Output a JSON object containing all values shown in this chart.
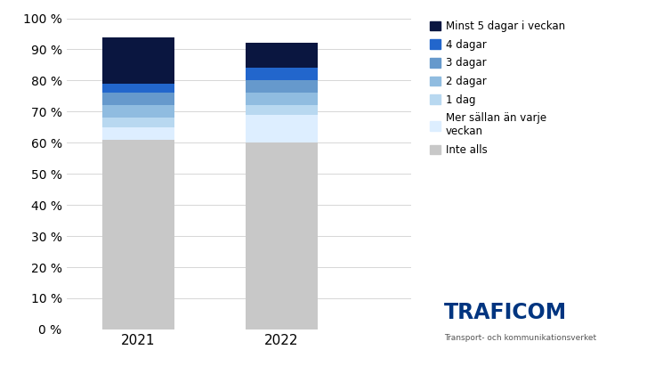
{
  "years": [
    "2021",
    "2022"
  ],
  "categories": [
    "Inte alls",
    "Mer sällan än varje veckan",
    "1 dag",
    "2 dagar",
    "3 dagar",
    "4 dagar",
    "Minst 5 dagar i veckan"
  ],
  "values_2021": [
    61,
    4,
    3,
    4,
    4,
    3,
    15
  ],
  "values_2022": [
    60,
    9,
    3,
    4,
    4,
    4,
    8
  ],
  "colors": [
    "#c8c8c8",
    "#ddeeff",
    "#b8d8f0",
    "#90bce0",
    "#6699cc",
    "#2266cc",
    "#0a1640"
  ],
  "legend_labels": [
    "Minst 5 dagar i veckan",
    "4 dagar",
    "3 dagar",
    "2 dagar",
    "1 dag",
    "Mer sällan än varje\nveckan",
    "Inte alls"
  ],
  "legend_colors": [
    "#0a1640",
    "#2266cc",
    "#6699cc",
    "#90bce0",
    "#b8d8f0",
    "#ddeeff",
    "#c8c8c8"
  ],
  "ylim": [
    0,
    100
  ],
  "yticks": [
    0,
    10,
    20,
    30,
    40,
    50,
    60,
    70,
    80,
    90,
    100
  ],
  "ytick_labels": [
    "0 %",
    "10 %",
    "20 %",
    "30 %",
    "40 %",
    "50 %",
    "60 %",
    "70 %",
    "80 %",
    "90 %",
    "100 %"
  ],
  "background_color": "#ffffff",
  "traficom_blue": "#003580",
  "traficom_text": "Transport- och kommunikationsverket"
}
